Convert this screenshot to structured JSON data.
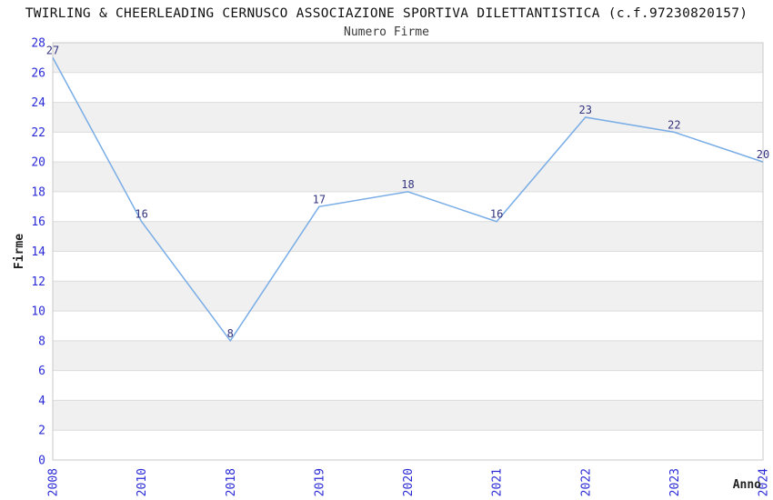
{
  "chart_data": {
    "type": "line",
    "title": "TWIRLING & CHEERLEADING CERNUSCO ASSOCIAZIONE SPORTIVA DILETTANTISTICA (c.f.97230820157)",
    "subtitle": "Numero Firme",
    "xlabel": "Anno",
    "ylabel": "Firme",
    "categories": [
      "2008",
      "2010",
      "2018",
      "2019",
      "2020",
      "2021",
      "2022",
      "2023",
      "2024"
    ],
    "values": [
      27,
      16,
      8,
      17,
      18,
      16,
      23,
      22,
      20
    ],
    "ylim": [
      0,
      28
    ],
    "ytick_step": 2,
    "grid": true,
    "plot_bands": "alternating-horizontal",
    "legend": "none",
    "markers": "none",
    "x_tick_rotation": -90,
    "colors": {
      "line": "#79ade6",
      "band": "#f0f0f0",
      "grid": "#dcdcdc",
      "border": "#c8c8c8",
      "tick_labels": "#2a2ad6",
      "data_labels": "#333380",
      "title": "#111111",
      "subtitle": "#3a3a3a",
      "axis_titles": "#222222",
      "background": "#ffffff"
    }
  }
}
